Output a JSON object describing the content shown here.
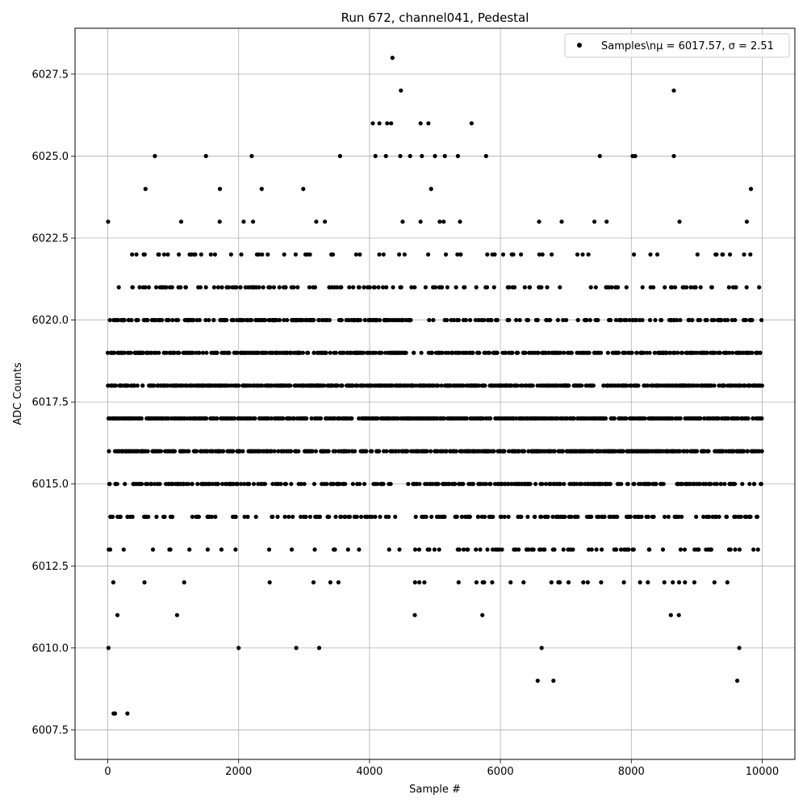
{
  "chart_data": {
    "type": "scatter",
    "title": "Run 672, channel041, Pedestal",
    "xlabel": "Sample #",
    "ylabel": "ADC Counts",
    "xlim": [
      -500,
      10500
    ],
    "ylim": [
      6006.6,
      6028.9
    ],
    "xticks": [
      0,
      2000,
      4000,
      6000,
      8000,
      10000
    ],
    "yticks": [
      6007.5,
      6010.0,
      6012.5,
      6015.0,
      6017.5,
      6020.0,
      6022.5,
      6025.0,
      6027.5
    ],
    "xtick_labels": [
      "0",
      "2000",
      "4000",
      "6000",
      "8000",
      "10000"
    ],
    "ytick_labels": [
      "6007.5",
      "6010.0",
      "6012.5",
      "6015.0",
      "6017.5",
      "6020.0",
      "6022.5",
      "6025.0",
      "6027.5"
    ],
    "grid": true,
    "legend_position": "top-right",
    "series": [
      {
        "name": "Samples\\nμ = 6017.57, σ = 2.51",
        "color": "#000000",
        "marker": "circle",
        "n_samples": 10000,
        "value_range": [
          6008,
          6028
        ],
        "outliers": [
          {
            "x": 90,
            "y": 6008
          },
          {
            "x": 110,
            "y": 6008
          },
          {
            "x": 300,
            "y": 6008
          },
          {
            "x": 10,
            "y": 6010
          },
          {
            "x": 2000,
            "y": 6010
          },
          {
            "x": 2880,
            "y": 6010
          },
          {
            "x": 3230,
            "y": 6010
          },
          {
            "x": 6630,
            "y": 6010
          },
          {
            "x": 9650,
            "y": 6010
          },
          {
            "x": 6570,
            "y": 6009
          },
          {
            "x": 6810,
            "y": 6009
          },
          {
            "x": 9620,
            "y": 6009
          },
          {
            "x": 720,
            "y": 6025
          },
          {
            "x": 1500,
            "y": 6025
          },
          {
            "x": 2200,
            "y": 6025
          },
          {
            "x": 3550,
            "y": 6025
          },
          {
            "x": 4090,
            "y": 6025
          },
          {
            "x": 4250,
            "y": 6025
          },
          {
            "x": 4470,
            "y": 6025
          },
          {
            "x": 4620,
            "y": 6025
          },
          {
            "x": 4800,
            "y": 6025
          },
          {
            "x": 5000,
            "y": 6025
          },
          {
            "x": 5150,
            "y": 6025
          },
          {
            "x": 5350,
            "y": 6025
          },
          {
            "x": 5780,
            "y": 6025
          },
          {
            "x": 7520,
            "y": 6025
          },
          {
            "x": 8020,
            "y": 6025
          },
          {
            "x": 8060,
            "y": 6025
          },
          {
            "x": 8650,
            "y": 6025
          },
          {
            "x": 4050,
            "y": 6026
          },
          {
            "x": 4150,
            "y": 6026
          },
          {
            "x": 4270,
            "y": 6026
          },
          {
            "x": 4330,
            "y": 6026
          },
          {
            "x": 4780,
            "y": 6026
          },
          {
            "x": 4900,
            "y": 6026
          },
          {
            "x": 5560,
            "y": 6026
          },
          {
            "x": 4480,
            "y": 6027
          },
          {
            "x": 8650,
            "y": 6027
          },
          {
            "x": 4350,
            "y": 6028
          }
        ]
      }
    ]
  }
}
